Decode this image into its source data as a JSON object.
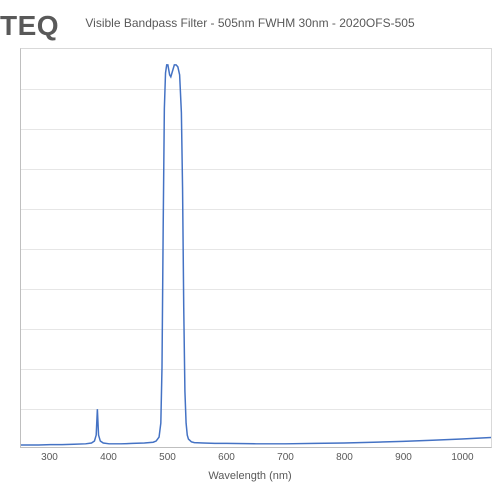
{
  "logo_text": "TEQ",
  "chart": {
    "type": "line",
    "title": "Visible Bandpass Filter - 505nm FWHM 30nm - 2020OFS-505",
    "title_fontsize": 12,
    "title_color": "#595959",
    "xlabel": "Wavelength (nm)",
    "label_fontsize": 11,
    "label_color": "#595959",
    "xlim": [
      250,
      1050
    ],
    "x_ticks": [
      300,
      400,
      500,
      600,
      700,
      800,
      900,
      1000
    ],
    "ylim": [
      0,
      1.0
    ],
    "n_horizontal_gridlines": 10,
    "background_color": "#ffffff",
    "grid_color": "#e6e6e6",
    "axis_color": "#bfbfbf",
    "line_color": "#4472c4",
    "line_width": 1.5,
    "series": {
      "wavelength": [
        250,
        280,
        300,
        320,
        340,
        360,
        370,
        375,
        378,
        380,
        382,
        385,
        390,
        400,
        420,
        440,
        460,
        475,
        480,
        485,
        488,
        490,
        492,
        494,
        496,
        498,
        500,
        503,
        505,
        508,
        511,
        514,
        517,
        520,
        523,
        525,
        527,
        529,
        531,
        533,
        535,
        540,
        545,
        560,
        580,
        600,
        650,
        700,
        750,
        800,
        850,
        900,
        950,
        1000,
        1050
      ],
      "transmission": [
        0.005,
        0.005,
        0.006,
        0.006,
        0.007,
        0.008,
        0.01,
        0.015,
        0.03,
        0.095,
        0.03,
        0.015,
        0.01,
        0.008,
        0.008,
        0.009,
        0.01,
        0.012,
        0.015,
        0.025,
        0.06,
        0.2,
        0.55,
        0.85,
        0.94,
        0.96,
        0.96,
        0.935,
        0.93,
        0.945,
        0.96,
        0.96,
        0.955,
        0.935,
        0.84,
        0.65,
        0.35,
        0.14,
        0.06,
        0.03,
        0.02,
        0.013,
        0.011,
        0.01,
        0.009,
        0.009,
        0.008,
        0.008,
        0.009,
        0.01,
        0.012,
        0.014,
        0.017,
        0.02,
        0.024
      ]
    }
  }
}
